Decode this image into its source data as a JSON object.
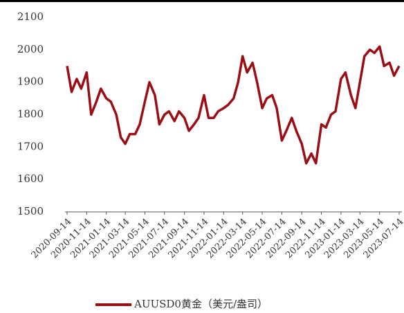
{
  "chart_data": {
    "type": "line",
    "x": [
      "2020-09-14",
      "2020-09-28",
      "2020-10-14",
      "2020-10-28",
      "2020-11-14",
      "2020-11-28",
      "2020-12-14",
      "2020-12-28",
      "2021-01-14",
      "2021-01-28",
      "2021-02-14",
      "2021-02-28",
      "2021-03-14",
      "2021-03-28",
      "2021-04-14",
      "2021-04-28",
      "2021-05-14",
      "2021-05-28",
      "2021-06-14",
      "2021-06-28",
      "2021-07-14",
      "2021-07-28",
      "2021-08-14",
      "2021-08-28",
      "2021-09-14",
      "2021-09-28",
      "2021-10-14",
      "2021-10-28",
      "2021-11-14",
      "2021-11-28",
      "2021-12-14",
      "2021-12-28",
      "2022-01-14",
      "2022-01-28",
      "2022-02-14",
      "2022-02-28",
      "2022-03-14",
      "2022-03-28",
      "2022-04-14",
      "2022-04-28",
      "2022-05-14",
      "2022-05-28",
      "2022-06-14",
      "2022-06-28",
      "2022-07-14",
      "2022-07-28",
      "2022-08-14",
      "2022-08-28",
      "2022-09-14",
      "2022-09-28",
      "2022-10-14",
      "2022-10-28",
      "2022-11-14",
      "2022-11-28",
      "2022-12-14",
      "2022-12-28",
      "2023-01-14",
      "2023-01-28",
      "2023-02-14",
      "2023-02-28",
      "2023-03-14",
      "2023-03-28",
      "2023-04-14",
      "2023-04-28",
      "2023-05-14",
      "2023-05-28",
      "2023-06-14",
      "2023-06-28",
      "2023-07-14"
    ],
    "series": [
      {
        "name": "AUUSD0黄金（美元/盎司）",
        "color": "#9b0e14",
        "values": [
          1950,
          1870,
          1910,
          1880,
          1930,
          1800,
          1840,
          1880,
          1850,
          1840,
          1800,
          1730,
          1710,
          1740,
          1740,
          1770,
          1840,
          1900,
          1860,
          1770,
          1800,
          1810,
          1780,
          1810,
          1790,
          1750,
          1770,
          1790,
          1860,
          1790,
          1790,
          1810,
          1820,
          1830,
          1850,
          1900,
          1980,
          1930,
          1960,
          1900,
          1820,
          1850,
          1860,
          1820,
          1720,
          1750,
          1790,
          1750,
          1710,
          1650,
          1680,
          1650,
          1770,
          1760,
          1800,
          1810,
          1910,
          1930,
          1860,
          1820,
          1900,
          1980,
          2000,
          1990,
          2010,
          1950,
          1960,
          1920,
          1950
        ]
      }
    ],
    "xlim": [
      "2020-09-14",
      "2023-07-14"
    ],
    "xticks": [
      "2020-09-14",
      "2020-11-14",
      "2021-01-14",
      "2021-03-14",
      "2021-05-14",
      "2021-07-14",
      "2021-09-14",
      "2021-11-14",
      "2022-01-14",
      "2022-03-14",
      "2022-05-14",
      "2022-07-14",
      "2022-09-14",
      "2022-11-14",
      "2023-01-14",
      "2023-03-14",
      "2023-05-14",
      "2023-07-14"
    ],
    "ylim": [
      1500,
      2100
    ],
    "yticks": [
      1500,
      1600,
      1700,
      1800,
      1900,
      2000,
      2100
    ],
    "legend": "bottom"
  }
}
